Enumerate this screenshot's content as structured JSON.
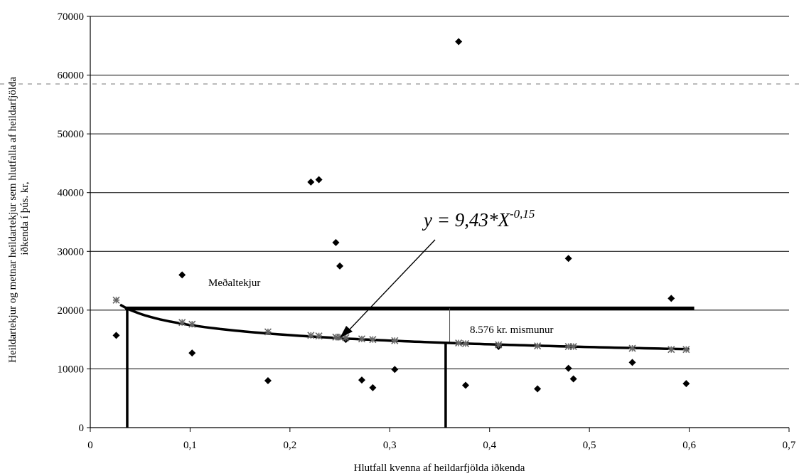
{
  "chart_data": {
    "type": "scatter",
    "xlabel": "Hlutfall kvenna af heildarfjölda iðkenda",
    "ylabel_line1": "Heildartekjur og metnar heildartekjur sem hlutfalla af heildarfjölda",
    "ylabel_line2": "iðkenda í þús. kr,",
    "xlim": [
      0,
      0.7
    ],
    "ylim": [
      0,
      70000
    ],
    "x_ticks": [
      0,
      0.1,
      0.2,
      0.3,
      0.4,
      0.5,
      0.6,
      0.7
    ],
    "x_tick_labels": [
      "0",
      "0,1",
      "0,2",
      "0,3",
      "0,4",
      "0,5",
      "0,6",
      "0,7"
    ],
    "y_ticks": [
      0,
      10000,
      20000,
      30000,
      40000,
      50000,
      60000,
      70000
    ],
    "y_tick_labels": [
      "0",
      "10000",
      "20000",
      "30000",
      "40000",
      "50000",
      "60000",
      "70000"
    ],
    "grid": "horizontal",
    "series": [
      {
        "marker": "diamond",
        "points": [
          [
            0.026,
            15700
          ],
          [
            0.092,
            26000
          ],
          [
            0.102,
            12700
          ],
          [
            0.178,
            8000
          ],
          [
            0.221,
            41800
          ],
          [
            0.229,
            42200
          ],
          [
            0.246,
            31500
          ],
          [
            0.25,
            27500
          ],
          [
            0.256,
            15000
          ],
          [
            0.272,
            8100
          ],
          [
            0.283,
            6800
          ],
          [
            0.305,
            9900
          ],
          [
            0.369,
            65700
          ],
          [
            0.376,
            7200
          ],
          [
            0.409,
            13800
          ],
          [
            0.448,
            6600
          ],
          [
            0.479,
            28800
          ],
          [
            0.479,
            10100
          ],
          [
            0.484,
            8300
          ],
          [
            0.543,
            11100
          ],
          [
            0.582,
            22000
          ],
          [
            0.597,
            7500
          ]
        ]
      },
      {
        "marker": "asterisk",
        "points": [
          [
            0.026,
            21700
          ],
          [
            0.092,
            17900
          ],
          [
            0.102,
            17600
          ],
          [
            0.178,
            16300
          ],
          [
            0.221,
            15700
          ],
          [
            0.229,
            15600
          ],
          [
            0.246,
            15400
          ],
          [
            0.25,
            15400
          ],
          [
            0.256,
            15300
          ],
          [
            0.272,
            15100
          ],
          [
            0.283,
            15000
          ],
          [
            0.305,
            14800
          ],
          [
            0.369,
            14400
          ],
          [
            0.376,
            14300
          ],
          [
            0.409,
            14100
          ],
          [
            0.448,
            13900
          ],
          [
            0.479,
            13800
          ],
          [
            0.484,
            13800
          ],
          [
            0.543,
            13500
          ],
          [
            0.582,
            13300
          ],
          [
            0.597,
            13300
          ]
        ]
      }
    ],
    "trendline": {
      "equation_base": "y = 9,43*X",
      "equation_exponent": "-0,15"
    },
    "mean_line": {
      "label": "Meðaltekjur",
      "y": 20300,
      "x_start": 0.035,
      "x_end": 0.605
    },
    "vertical_markers": [
      {
        "x": 0.037,
        "y_top": 20300
      },
      {
        "x": 0.356,
        "y_top": 14500
      }
    ],
    "annotations": {
      "difference": "8.576 kr. mismunur"
    }
  }
}
